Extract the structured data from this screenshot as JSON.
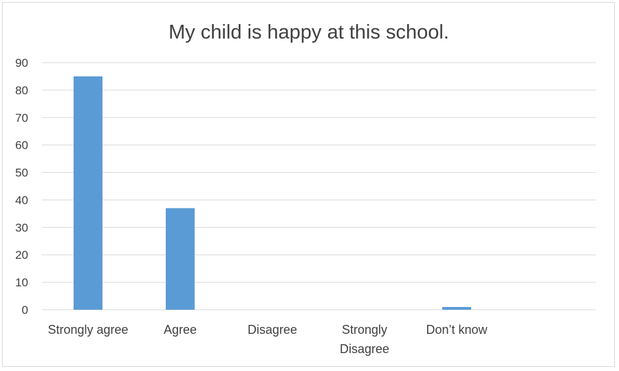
{
  "chart_data": {
    "type": "bar",
    "title": "My child is happy at this school.",
    "categories": [
      [
        "Strongly agree"
      ],
      [
        "Agree"
      ],
      [
        "Disagree"
      ],
      [
        "Strongly",
        "Disagree"
      ],
      [
        "Don’t know"
      ]
    ],
    "values": [
      85,
      37,
      0,
      0,
      1
    ],
    "yticks": [
      "0",
      "10",
      "20",
      "30",
      "40",
      "50",
      "60",
      "70",
      "80",
      "90"
    ],
    "ylim": [
      0,
      90
    ],
    "grid": true,
    "bar_color": "#5b9bd5"
  }
}
